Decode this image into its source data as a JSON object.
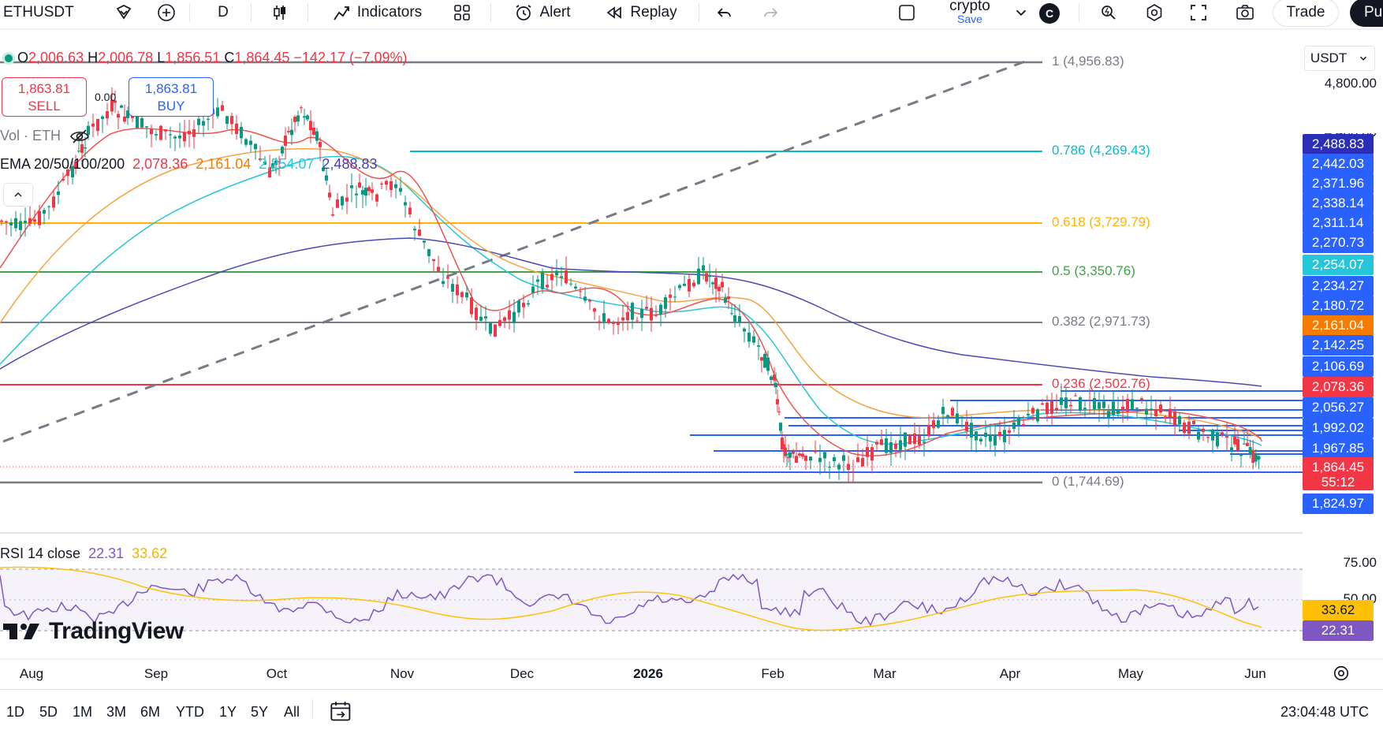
{
  "toolbar": {
    "symbol": "ETHUSDT",
    "interval": "D",
    "indicators_label": "Indicators",
    "alert_label": "Alert",
    "replay_label": "Replay",
    "layout_name": "crypto",
    "layout_save": "Save",
    "avatar_letter": "C",
    "trade_label": "Trade",
    "publish_label": "Pu"
  },
  "legend": {
    "ohlc": {
      "o_label": "O",
      "o": "2,006.63",
      "h_label": "H",
      "h": "2,006.78",
      "l_label": "L",
      "l": "1,856.51",
      "c_label": "C",
      "c": "1,864.45",
      "change": "−142.17 (−7.09%)"
    },
    "sell": {
      "price": "1,863.81",
      "label": "SELL"
    },
    "buy": {
      "price": "1,863.81",
      "label": "BUY"
    },
    "spread": "0.00",
    "vol": "Vol · ETH",
    "ema": {
      "label": "EMA 20/50/100/200",
      "v20": "2,078.36",
      "v50": "2,161.04",
      "v100": "2,254.07",
      "v200": "2,488.83"
    },
    "rsi": {
      "label": "RSI 14 close",
      "v1": "22.31",
      "v2": "33.62"
    }
  },
  "fib_levels": [
    {
      "ratio": "1",
      "label": "1 (4,956.83)",
      "color": "#787b86"
    },
    {
      "ratio": "0.786",
      "label": "0.786 (4,269.43)",
      "color": "#00bcd4"
    },
    {
      "ratio": "0.618",
      "label": "0.618 (3,729.79)",
      "color": "#ffb300"
    },
    {
      "ratio": "0.5",
      "label": "0.5 (3,350.76)",
      "color": "#43a047"
    },
    {
      "ratio": "0.382",
      "label": "0.382 (2,971.73)",
      "color": "#787b86"
    },
    {
      "ratio": "0.236",
      "label": "0.236 (2,502.76)",
      "color": "#f23645"
    },
    {
      "ratio": "0",
      "label": "0 (1,744.69)",
      "color": "#787b86"
    }
  ],
  "price_axis": {
    "currency": "USDT",
    "labels": [
      "4,800.00",
      "4,400.00"
    ],
    "tags": [
      {
        "text": "2,488.83",
        "bg": "#2a2eb8"
      },
      {
        "text": "2,442.03",
        "bg": "#2962ff"
      },
      {
        "text": "2,371.96",
        "bg": "#2962ff"
      },
      {
        "text": "2,338.14",
        "bg": "#2962ff"
      },
      {
        "text": "2,311.14",
        "bg": "#2962ff"
      },
      {
        "text": "2,270.73",
        "bg": "#2962ff"
      },
      {
        "text": "2,254.07",
        "bg": "#26c6da"
      },
      {
        "text": "2,234.27",
        "bg": "#2962ff"
      },
      {
        "text": "2,180.72",
        "bg": "#2962ff"
      },
      {
        "text": "2,161.04",
        "bg": "#f57c00"
      },
      {
        "text": "2,142.25",
        "bg": "#2962ff"
      },
      {
        "text": "2,106.69",
        "bg": "#2962ff"
      },
      {
        "text": "2,078.36",
        "bg": "#f23645"
      },
      {
        "text": "2,056.27",
        "bg": "#2962ff"
      },
      {
        "text": "1,992.02",
        "bg": "#2962ff"
      },
      {
        "text": "1,967.85",
        "bg": "#2962ff"
      },
      {
        "text": "1,864.45",
        "bg": "#f23645"
      },
      {
        "text": "55:12",
        "bg": "#f23645"
      },
      {
        "text": "1,824.97",
        "bg": "#2962ff"
      }
    ],
    "rsi_labels": [
      "75.00",
      "50.00"
    ],
    "rsi_tags": [
      {
        "text": "33.62",
        "bg": "#ffc107",
        "fg": "#131722"
      },
      {
        "text": "22.31",
        "bg": "#7e57c2",
        "fg": "#ffffff"
      }
    ]
  },
  "time_axis": [
    "Aug",
    "Sep",
    "Oct",
    "Nov",
    "Dec",
    "2026",
    "Feb",
    "Mar",
    "Apr",
    "May",
    "Jun"
  ],
  "ranges": [
    "1D",
    "5D",
    "1M",
    "3M",
    "6M",
    "YTD",
    "1Y",
    "5Y",
    "All"
  ],
  "clock": "23:04:48 UTC",
  "brand": "TradingView"
}
